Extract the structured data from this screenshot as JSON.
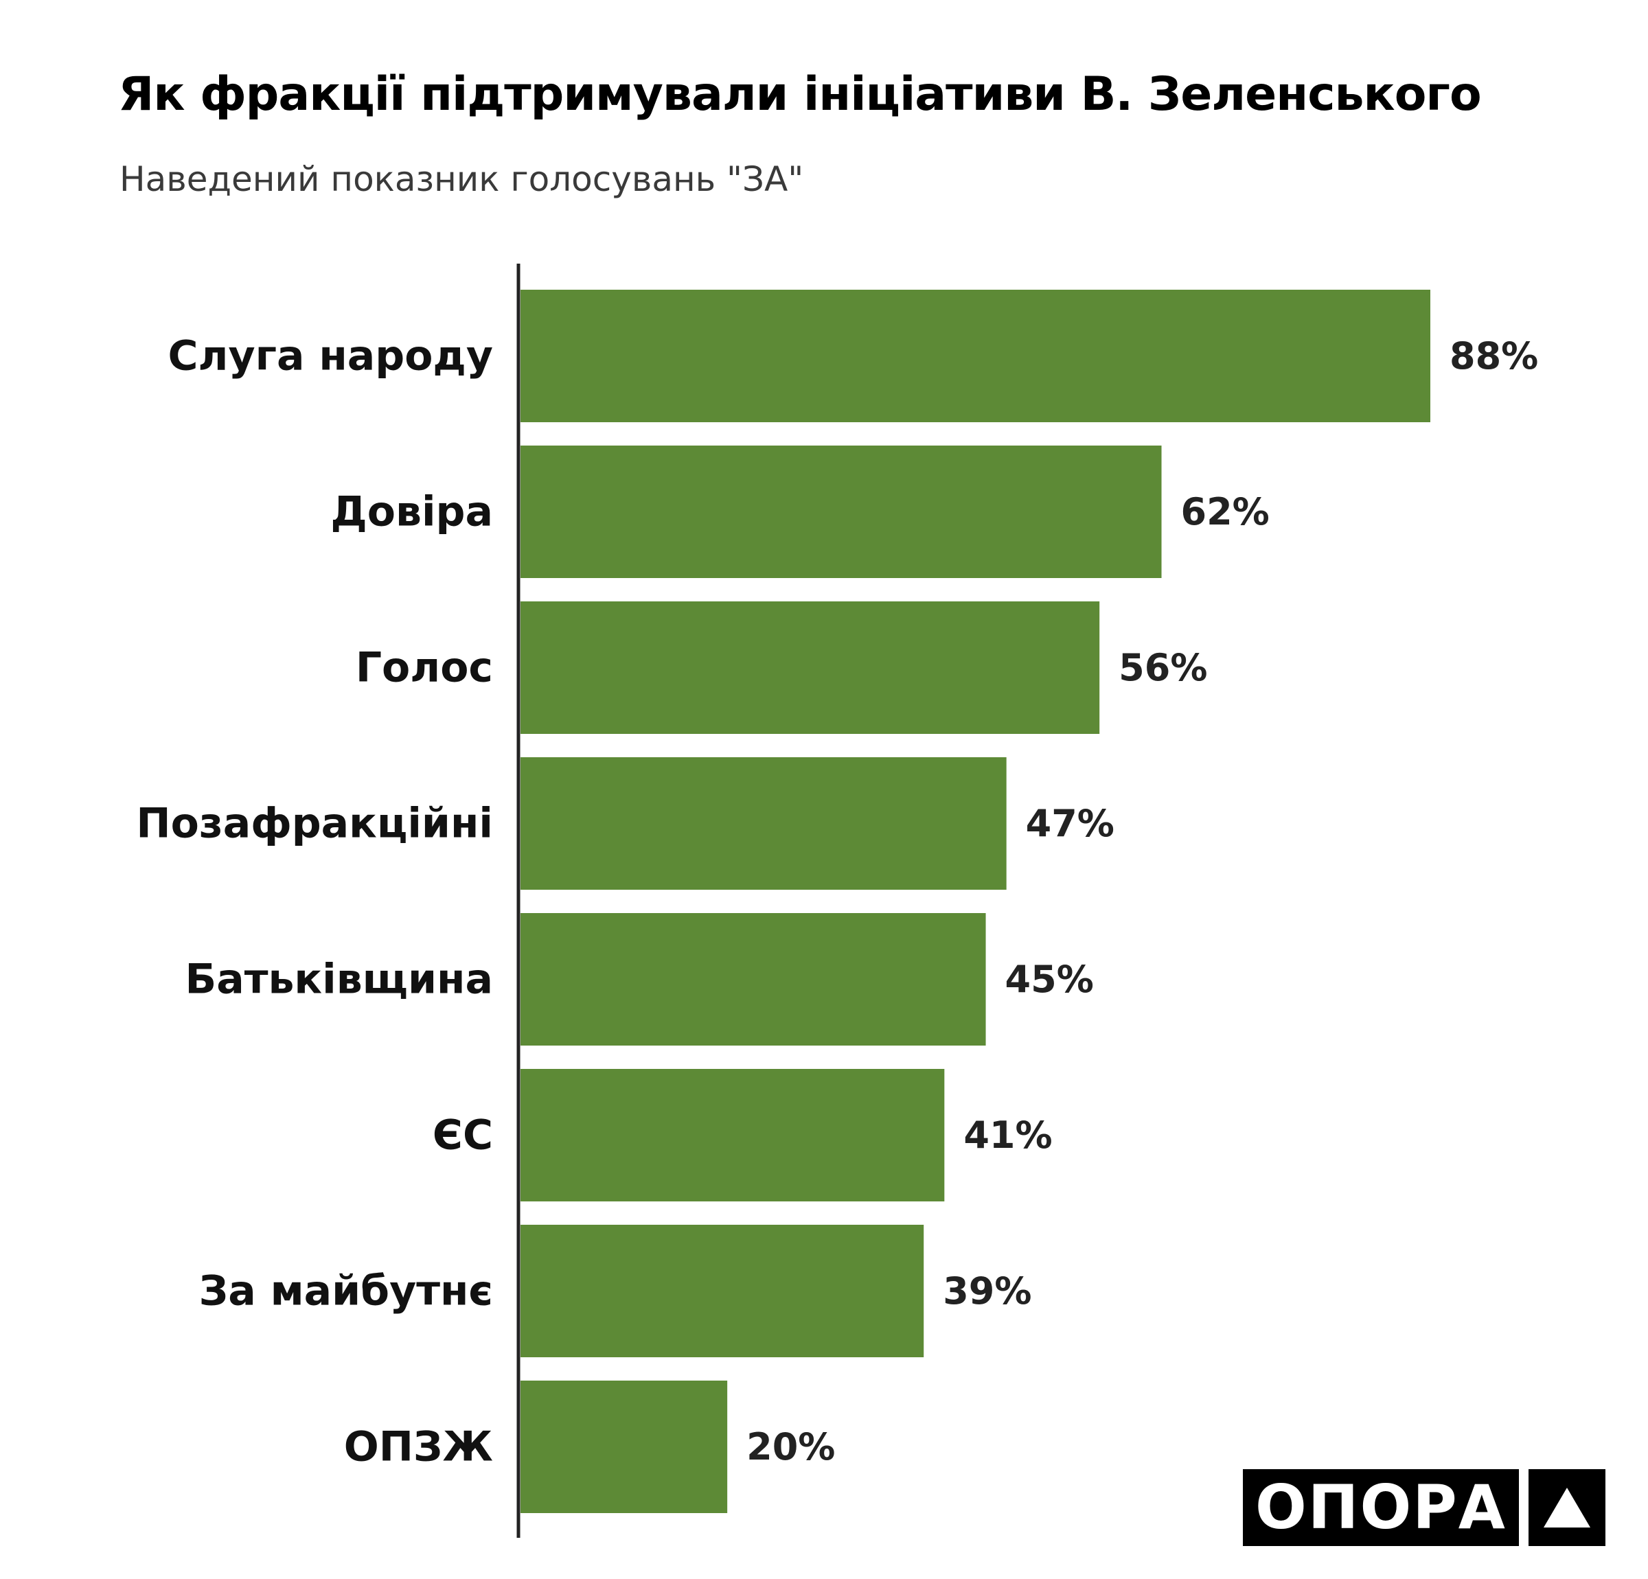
{
  "title": "Як фракції підтримували ініціативи В. Зеленського",
  "subtitle": "Наведений показник голосувань \"ЗА\"",
  "logo": {
    "text": "ОПОРА",
    "icon": "triangle-icon"
  },
  "colors": {
    "bar": "#5d8a36",
    "axis": "#222222",
    "logo_bg": "#000000"
  },
  "chart_data": {
    "type": "bar",
    "orientation": "horizontal",
    "categories": [
      "Слуга народу",
      "Довіра",
      "Голос",
      "Позафракційні",
      "Батьківщина",
      "ЄС",
      "За майбутнє",
      "ОПЗЖ"
    ],
    "values": [
      88,
      62,
      56,
      47,
      45,
      41,
      39,
      20
    ],
    "value_labels": [
      "88%",
      "62%",
      "56%",
      "47%",
      "45%",
      "41%",
      "39%",
      "20%"
    ],
    "unit": "%",
    "xlim": [
      0,
      100
    ],
    "grid": false
  }
}
